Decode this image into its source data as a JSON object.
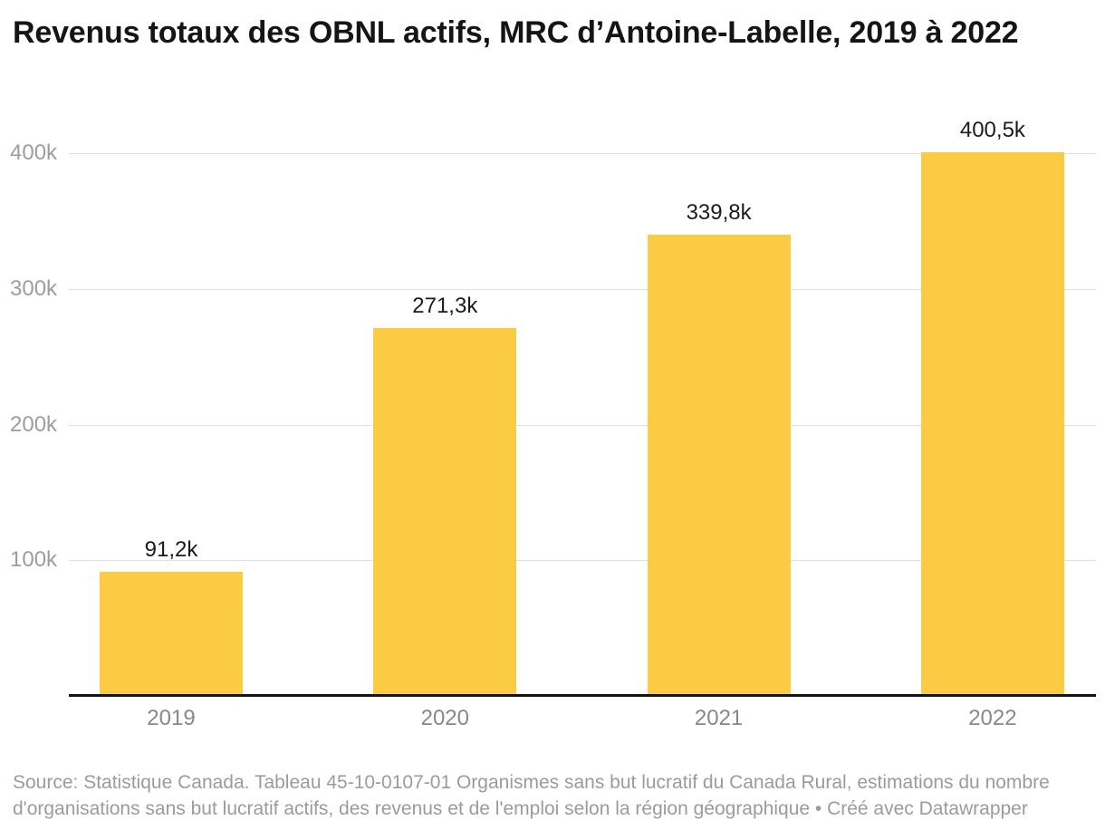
{
  "title": "Revenus totaux des OBNL actifs, MRC d’Antoine-Labelle, 2019 à 2022",
  "chart_data": {
    "type": "bar",
    "title": "Revenus totaux des OBNL actifs, MRC d’Antoine-Labelle, 2019 à 2022",
    "categories": [
      "2019",
      "2020",
      "2021",
      "2022"
    ],
    "values": [
      91200,
      271300,
      339800,
      400500
    ],
    "value_labels": [
      "91,2k",
      "271,3k",
      "339,8k",
      "400,5k"
    ],
    "xlabel": "",
    "ylabel": "",
    "ylim": [
      0,
      400500
    ],
    "y_ticks": [
      {
        "value": 100000,
        "label": "100k"
      },
      {
        "value": 200000,
        "label": "200k"
      },
      {
        "value": 300000,
        "label": "300k"
      },
      {
        "value": 400000,
        "label": "400k"
      }
    ],
    "grid": true,
    "legend_position": "none",
    "bar_color": "#FBCB44"
  },
  "colors": {
    "bar": "#FBCB44",
    "gridline": "#e0e0e0",
    "axis_line": "#141414",
    "tick_text": "#9d9d9d",
    "category_text": "#888888",
    "value_text": "#1b1b1b",
    "title_text": "#151515",
    "source_text": "#9b9b9b"
  },
  "footer": {
    "source": "Source: Statistique Canada. Tableau 45-10-0107-01 Organismes sans but lucratif du Canada Rural, estimations du nombre d'organisations sans but lucratif actifs, des revenus et de l'emploi selon la région géographique • Créé avec Datawrapper"
  }
}
